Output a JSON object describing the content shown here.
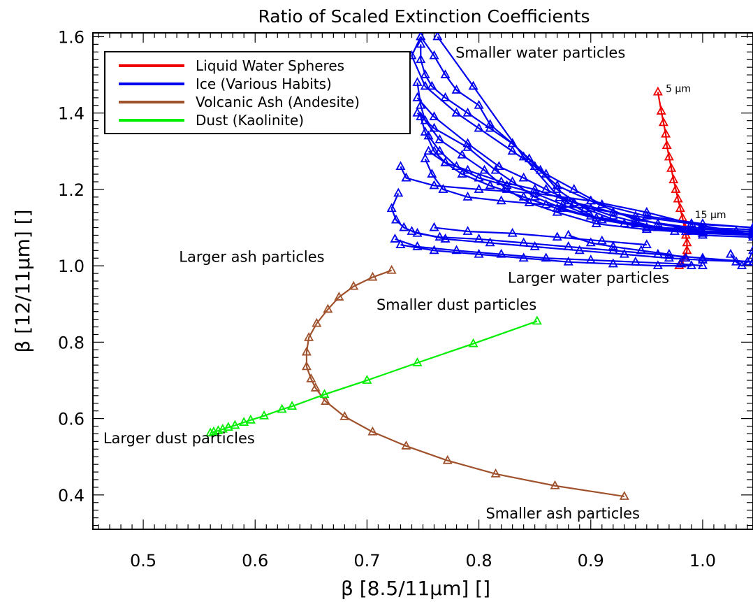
{
  "chart_data": {
    "type": "line",
    "title": "Ratio of Scaled Extinction Coefficients",
    "xlabel": "β [8.5/11μm] []",
    "ylabel": "β [12/11μm] []",
    "xlim": [
      0.455,
      1.045
    ],
    "ylim": [
      0.31,
      1.61
    ],
    "xticks": [
      0.5,
      0.6,
      0.7,
      0.8,
      0.9,
      1.0
    ],
    "xtick_labels": [
      "0.5",
      "0.6",
      "0.7",
      "0.8",
      "0.9",
      "1.0"
    ],
    "yticks": [
      0.4,
      0.6,
      0.8,
      1.0,
      1.2,
      1.4,
      1.6
    ],
    "ytick_labels": [
      "0.4",
      "0.6",
      "0.8",
      "1.0",
      "1.2",
      "1.4",
      "1.6"
    ],
    "marker": "triangle",
    "legend_position": "top-left",
    "series": [
      {
        "name": "Liquid Water Spheres",
        "color": "#ee0000",
        "segments": [
          [
            [
              0.96,
              1.455
            ],
            [
              0.963,
              1.405
            ],
            [
              0.965,
              1.375
            ],
            [
              0.967,
              1.345
            ],
            [
              0.968,
              1.315
            ],
            [
              0.97,
              1.285
            ],
            [
              0.972,
              1.255
            ],
            [
              0.974,
              1.225
            ],
            [
              0.976,
              1.2
            ],
            [
              0.978,
              1.175
            ],
            [
              0.98,
              1.15
            ],
            [
              0.982,
              1.125
            ],
            [
              0.984,
              1.1
            ],
            [
              0.985,
              1.08
            ],
            [
              0.986,
              1.06
            ],
            [
              0.986,
              1.04
            ],
            [
              0.984,
              1.02
            ],
            [
              0.981,
              1.005
            ],
            [
              0.979,
              1.0
            ]
          ]
        ]
      },
      {
        "name": "Ice (Various Habits)",
        "color": "#0000ee",
        "segments": [
          [
            [
              0.763,
              1.6
            ],
            [
              0.795,
              1.47
            ],
            [
              0.84,
              1.285
            ],
            [
              0.872,
              1.178
            ],
            [
              0.905,
              1.125
            ],
            [
              0.95,
              1.1
            ],
            [
              0.985,
              1.09
            ],
            [
              1.045,
              1.08
            ]
          ],
          [
            [
              0.748,
              1.58
            ],
            [
              0.748,
              1.54
            ],
            [
              0.752,
              1.5
            ],
            [
              0.758,
              1.47
            ],
            [
              0.77,
              1.44
            ],
            [
              0.79,
              1.4
            ],
            [
              0.81,
              1.36
            ],
            [
              0.83,
              1.32
            ],
            [
              0.855,
              1.25
            ],
            [
              0.87,
              1.2
            ],
            [
              0.895,
              1.15
            ],
            [
              0.93,
              1.11
            ],
            [
              0.975,
              1.09
            ],
            [
              1.045,
              1.09
            ]
          ],
          [
            [
              0.748,
              1.6
            ],
            [
              0.74,
              1.55
            ],
            [
              0.752,
              1.47
            ],
            [
              0.78,
              1.4
            ],
            [
              0.8,
              1.36
            ],
            [
              0.83,
              1.3
            ],
            [
              0.85,
              1.26
            ],
            [
              0.87,
              1.21
            ],
            [
              0.9,
              1.17
            ],
            [
              0.94,
              1.12
            ],
            [
              0.99,
              1.1
            ],
            [
              1.045,
              1.095
            ]
          ],
          [
            [
              0.745,
              1.44
            ],
            [
              0.76,
              1.39
            ],
            [
              0.79,
              1.32
            ],
            [
              0.818,
              1.26
            ],
            [
              0.84,
              1.23
            ],
            [
              0.86,
              1.2
            ],
            [
              0.885,
              1.165
            ],
            [
              0.92,
              1.13
            ],
            [
              0.96,
              1.1
            ],
            [
              1.0,
              1.08
            ],
            [
              1.045,
              1.075
            ]
          ],
          [
            [
              0.745,
              1.4
            ],
            [
              0.76,
              1.36
            ],
            [
              0.79,
              1.31
            ],
            [
              0.815,
              1.25
            ],
            [
              0.83,
              1.22
            ],
            [
              0.85,
              1.18
            ],
            [
              0.875,
              1.15
            ],
            [
              0.91,
              1.12
            ],
            [
              0.96,
              1.1
            ],
            [
              1.045,
              1.09
            ]
          ],
          [
            [
              0.748,
              1.39
            ],
            [
              0.752,
              1.35
            ],
            [
              0.76,
              1.3
            ],
            [
              0.77,
              1.27
            ],
            [
              0.785,
              1.24
            ],
            [
              0.81,
              1.21
            ],
            [
              0.84,
              1.18
            ],
            [
              0.87,
              1.15
            ],
            [
              0.91,
              1.12
            ],
            [
              0.95,
              1.1
            ],
            [
              1.0,
              1.09
            ],
            [
              1.045,
              1.08
            ]
          ],
          [
            [
              0.755,
              1.34
            ],
            [
              0.765,
              1.3
            ],
            [
              0.78,
              1.26
            ],
            [
              0.8,
              1.23
            ],
            [
              0.825,
              1.21
            ],
            [
              0.85,
              1.19
            ],
            [
              0.875,
              1.16
            ],
            [
              0.9,
              1.13
            ],
            [
              0.94,
              1.11
            ],
            [
              0.99,
              1.09
            ],
            [
              1.045,
              1.085
            ]
          ],
          [
            [
              0.755,
              1.3
            ],
            [
              0.77,
              1.27
            ],
            [
              0.79,
              1.25
            ],
            [
              0.82,
              1.22
            ],
            [
              0.85,
              1.2
            ],
            [
              0.88,
              1.17
            ],
            [
              0.92,
              1.14
            ],
            [
              0.96,
              1.11
            ],
            [
              1.0,
              1.09
            ],
            [
              1.045,
              1.08
            ]
          ],
          [
            [
              0.748,
              1.6
            ],
            [
              0.76,
              1.55
            ],
            [
              0.77,
              1.5
            ],
            [
              0.78,
              1.46
            ],
            [
              0.8,
              1.42
            ],
            [
              0.81,
              1.37
            ],
            [
              0.83,
              1.32
            ],
            [
              0.845,
              1.28
            ],
            [
              0.86,
              1.24
            ],
            [
              0.885,
              1.2
            ],
            [
              0.91,
              1.16
            ],
            [
              0.95,
              1.13
            ],
            [
              1.0,
              1.11
            ],
            [
              1.045,
              1.1
            ]
          ],
          [
            [
              0.745,
              1.48
            ],
            [
              0.748,
              1.42
            ],
            [
              0.752,
              1.38
            ],
            [
              0.765,
              1.33
            ],
            [
              0.785,
              1.29
            ],
            [
              0.805,
              1.25
            ],
            [
              0.825,
              1.2
            ],
            [
              0.845,
              1.165
            ],
            [
              0.87,
              1.14
            ],
            [
              0.905,
              1.11
            ],
            [
              0.95,
              1.095
            ],
            [
              1.0,
              1.085
            ],
            [
              1.045,
              1.08
            ]
          ],
          [
            [
              0.752,
              1.28
            ],
            [
              0.758,
              1.24
            ],
            [
              0.768,
              1.2
            ],
            [
              0.79,
              1.18
            ],
            [
              0.82,
              1.17
            ],
            [
              0.86,
              1.16
            ],
            [
              0.9,
              1.15
            ],
            [
              0.94,
              1.13
            ],
            [
              0.99,
              1.11
            ],
            [
              1.045,
              1.1
            ]
          ],
          [
            [
              0.728,
              1.19
            ],
            [
              0.722,
              1.15
            ],
            [
              0.726,
              1.12
            ],
            [
              0.733,
              1.1
            ],
            [
              0.745,
              1.085
            ],
            [
              0.765,
              1.075
            ],
            [
              0.8,
              1.07
            ],
            [
              0.84,
              1.06
            ],
            [
              0.88,
              1.05
            ],
            [
              0.92,
              1.04
            ],
            [
              0.96,
              1.03
            ],
            [
              1.0,
              1.02
            ],
            [
              1.045,
              1.01
            ]
          ],
          [
            [
              0.73,
              1.26
            ],
            [
              0.735,
              1.23
            ],
            [
              0.76,
              1.21
            ],
            [
              0.8,
              1.2
            ],
            [
              0.85,
              1.19
            ],
            [
              0.9,
              1.17
            ],
            [
              0.95,
              1.14
            ],
            [
              0.99,
              1.11
            ],
            [
              1.03,
              1.09
            ],
            [
              1.045,
              1.08
            ]
          ],
          [
            [
              0.725,
              1.07
            ],
            [
              0.745,
              1.05
            ],
            [
              0.78,
              1.04
            ],
            [
              0.82,
              1.03
            ],
            [
              0.86,
              1.02
            ],
            [
              0.9,
              1.015
            ],
            [
              0.94,
              1.01
            ],
            [
              0.98,
              1.005
            ],
            [
              1.0,
              1.0
            ]
          ],
          [
            [
              0.73,
              1.055
            ],
            [
              0.76,
              1.04
            ],
            [
              0.8,
              1.03
            ],
            [
              0.84,
              1.02
            ],
            [
              0.88,
              1.01
            ],
            [
              0.92,
              1.005
            ],
            [
              0.96,
              1.0
            ],
            [
              0.99,
              1.0
            ]
          ],
          [
            [
              0.74,
              1.09
            ],
            [
              0.77,
              1.07
            ],
            [
              0.81,
              1.06
            ],
            [
              0.85,
              1.05
            ],
            [
              0.89,
              1.04
            ],
            [
              0.93,
              1.03
            ],
            [
              0.97,
              1.02
            ],
            [
              1.0,
              1.015
            ],
            [
              1.045,
              1.01
            ]
          ],
          [
            [
              1.025,
              1.03
            ],
            [
              1.03,
              1.01
            ],
            [
              1.035,
              1.0
            ],
            [
              1.04,
              1.01
            ],
            [
              1.045,
              1.04
            ]
          ],
          [
            [
              0.88,
              1.08
            ],
            [
              0.9,
              1.06
            ],
            [
              0.92,
              1.05
            ],
            [
              0.945,
              1.04
            ],
            [
              0.97,
              1.03
            ],
            [
              0.985,
              1.02
            ]
          ],
          [
            [
              0.76,
              1.1
            ],
            [
              0.79,
              1.09
            ],
            [
              0.83,
              1.085
            ],
            [
              0.87,
              1.075
            ],
            [
              0.91,
              1.065
            ],
            [
              0.95,
              1.055
            ]
          ]
        ]
      },
      {
        "name": "Volcanic Ash (Andesite)",
        "color": "#a0522d",
        "segments": [
          [
            [
              0.722,
              0.988
            ],
            [
              0.705,
              0.97
            ],
            [
              0.688,
              0.946
            ],
            [
              0.675,
              0.918
            ],
            [
              0.665,
              0.886
            ],
            [
              0.655,
              0.849
            ],
            [
              0.648,
              0.812
            ],
            [
              0.646,
              0.774
            ],
            [
              0.646,
              0.736
            ],
            [
              0.65,
              0.704
            ],
            [
              0.654,
              0.68
            ],
            [
              0.663,
              0.645
            ],
            [
              0.68,
              0.605
            ],
            [
              0.705,
              0.565
            ],
            [
              0.735,
              0.528
            ],
            [
              0.772,
              0.49
            ],
            [
              0.815,
              0.455
            ],
            [
              0.868,
              0.424
            ],
            [
              0.93,
              0.396
            ]
          ]
        ]
      },
      {
        "name": "Dust (Kaolinite)",
        "color": "#00ee00",
        "segments": [
          [
            [
              0.852,
              0.855
            ],
            [
              0.795,
              0.796
            ],
            [
              0.745,
              0.746
            ],
            [
              0.7,
              0.7
            ],
            [
              0.662,
              0.663
            ],
            [
              0.633,
              0.632
            ],
            [
              0.624,
              0.624
            ],
            [
              0.608,
              0.607
            ],
            [
              0.596,
              0.596
            ],
            [
              0.59,
              0.59
            ],
            [
              0.582,
              0.582
            ],
            [
              0.576,
              0.577
            ],
            [
              0.571,
              0.572
            ],
            [
              0.567,
              0.568
            ],
            [
              0.563,
              0.565
            ],
            [
              0.56,
              0.562
            ]
          ]
        ]
      }
    ],
    "annotations": [
      {
        "text": "Smaller water particles",
        "x": 0.855,
        "y": 1.545
      },
      {
        "text": "5 μm",
        "x": 0.967,
        "y": 1.455
      },
      {
        "text": "15 μm",
        "x": 0.993,
        "y": 1.125
      },
      {
        "text": "Larger water particles",
        "x": 0.898,
        "y": 0.955
      },
      {
        "text": "Larger ash particles",
        "x": 0.597,
        "y": 1.01
      },
      {
        "text": "Smaller dust particles",
        "x": 0.78,
        "y": 0.885
      },
      {
        "text": "Larger dust particles",
        "x": 0.532,
        "y": 0.535
      },
      {
        "text": "Smaller ash particles",
        "x": 0.875,
        "y": 0.338
      }
    ]
  }
}
